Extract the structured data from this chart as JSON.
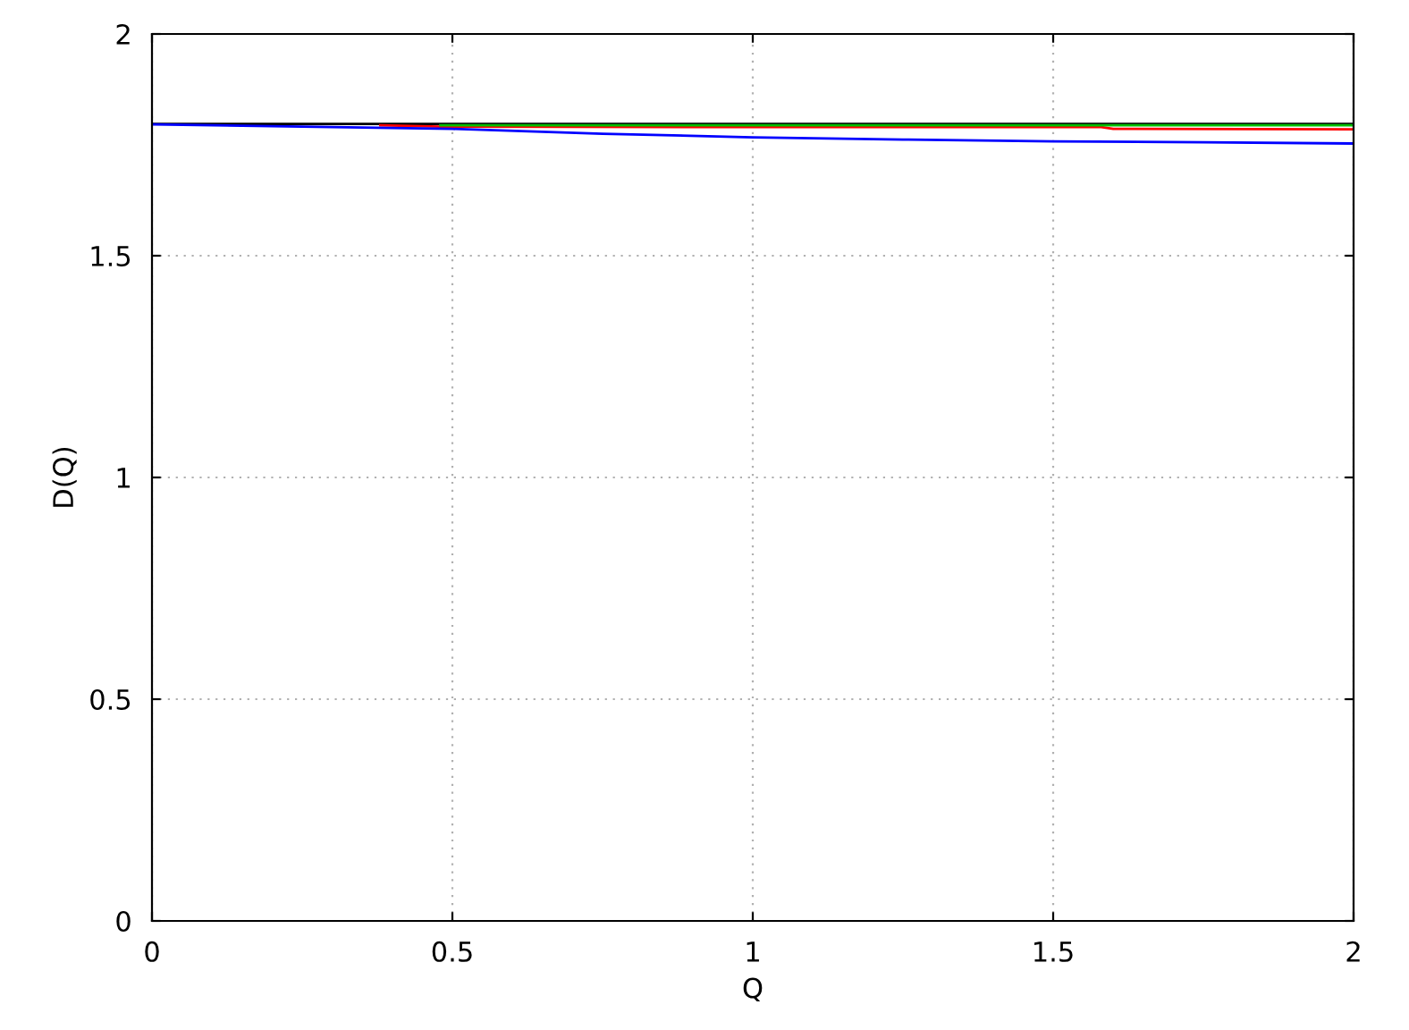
{
  "chart_data": {
    "type": "line",
    "xlabel": "Q",
    "ylabel": "D(Q)",
    "xlim": [
      0,
      2
    ],
    "ylim": [
      0,
      2
    ],
    "xticks": [
      0,
      0.5,
      1,
      1.5,
      2
    ],
    "yticks": [
      0,
      0.5,
      1,
      1.5,
      2
    ],
    "grid": true,
    "legend": false,
    "series": [
      {
        "color": "#000000",
        "x": [
          0,
          0.5,
          1,
          1.5,
          2
        ],
        "values": [
          1.797,
          1.797,
          1.797,
          1.797,
          1.797
        ]
      },
      {
        "color": "#ff0000",
        "x": [
          0.38,
          0.48,
          1.0,
          1.58,
          1.6,
          2
        ],
        "values": [
          1.794,
          1.791,
          1.79,
          1.79,
          1.786,
          1.785
        ]
      },
      {
        "color": "#00c000",
        "x": [
          0.48,
          1.0,
          1.58,
          2
        ],
        "values": [
          1.794,
          1.794,
          1.794,
          1.794
        ]
      },
      {
        "color": "#0000ff",
        "x": [
          0,
          0.25,
          0.5,
          0.75,
          1.0,
          1.25,
          1.5,
          1.75,
          2
        ],
        "values": [
          1.796,
          1.791,
          1.786,
          1.775,
          1.767,
          1.762,
          1.758,
          1.756,
          1.753
        ]
      }
    ]
  }
}
